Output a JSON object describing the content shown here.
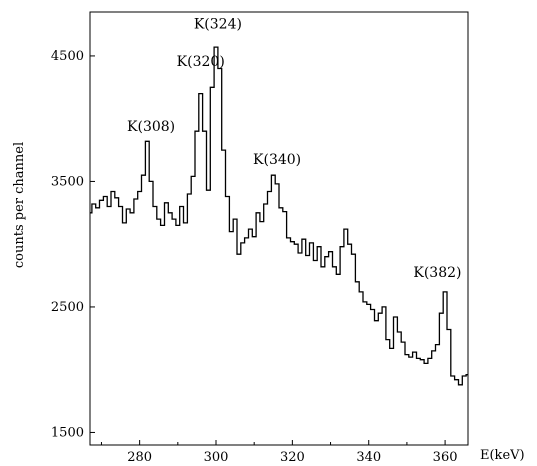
{
  "chart_data": {
    "type": "line",
    "title": "",
    "xlabel": "E(keV)",
    "ylabel": "counts per channel",
    "xlim": [
      267,
      366
    ],
    "ylim": [
      1400,
      4850
    ],
    "x_ticks": [
      280,
      300,
      320,
      340,
      360
    ],
    "y_ticks": [
      1500,
      2500,
      3500,
      4500
    ],
    "grid": false,
    "legend": "none",
    "line_color": "#000000",
    "annotations": [
      {
        "text": "K(308)",
        "x": 283,
        "y": 3900
      },
      {
        "text": "K(320)",
        "x": 296,
        "y": 4420
      },
      {
        "text": "K(324)",
        "x": 300.5,
        "y": 4720
      },
      {
        "text": "K(340)",
        "x": 316,
        "y": 3640
      },
      {
        "text": "K(382)",
        "x": 358,
        "y": 2740
      }
    ],
    "series": [
      {
        "x": [
          267,
          268,
          269,
          270,
          271,
          272,
          273,
          274,
          275,
          276,
          277,
          278,
          279,
          280,
          281,
          282,
          283,
          284,
          285,
          286,
          287,
          288,
          289,
          290,
          291,
          292,
          293,
          294,
          295,
          296,
          297,
          298,
          299,
          300,
          301,
          302,
          303,
          304,
          305,
          306,
          307,
          308,
          309,
          310,
          311,
          312,
          313,
          314,
          315,
          316,
          317,
          318,
          319,
          320,
          321,
          322,
          323,
          324,
          325,
          326,
          327,
          328,
          329,
          330,
          331,
          332,
          333,
          334,
          335,
          336,
          337,
          338,
          339,
          340,
          341,
          342,
          343,
          344,
          345,
          346,
          347,
          348,
          349,
          350,
          351,
          352,
          353,
          354,
          355,
          356,
          357,
          358,
          359,
          360,
          361,
          362,
          363,
          364,
          365,
          366
        ],
        "y": [
          3250,
          3320,
          3290,
          3350,
          3380,
          3300,
          3420,
          3370,
          3300,
          3170,
          3280,
          3250,
          3360,
          3420,
          3550,
          3820,
          3500,
          3300,
          3200,
          3150,
          3330,
          3250,
          3200,
          3150,
          3300,
          3170,
          3400,
          3540,
          3900,
          4200,
          3900,
          3430,
          4250,
          4570,
          4400,
          3750,
          3380,
          3100,
          3200,
          2920,
          3010,
          3050,
          3120,
          3060,
          3250,
          3180,
          3320,
          3420,
          3550,
          3480,
          3290,
          3260,
          3050,
          3020,
          3000,
          2930,
          3040,
          2910,
          3010,
          2870,
          2980,
          2820,
          2900,
          2940,
          2820,
          2760,
          2980,
          3120,
          3000,
          2920,
          2700,
          2620,
          2540,
          2520,
          2480,
          2390,
          2450,
          2500,
          2240,
          2170,
          2420,
          2300,
          2220,
          2120,
          2100,
          2140,
          2090,
          2080,
          2050,
          2090,
          2150,
          2200,
          2450,
          2620,
          2320,
          1950,
          1920,
          1880,
          1950,
          1960
        ]
      }
    ]
  }
}
